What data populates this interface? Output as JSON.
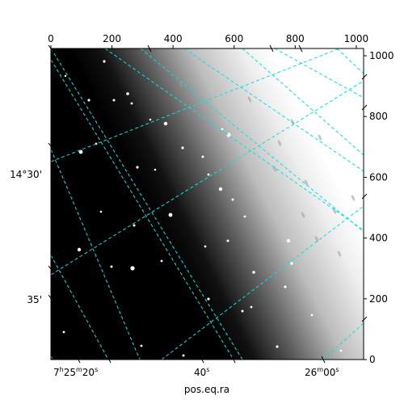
{
  "chart_data": {
    "type": "image",
    "xlabel": "pos.eq.ra",
    "ylabel": "",
    "pixel_axes": {
      "x_ticks": [
        0,
        200,
        400,
        600,
        800,
        1000
      ],
      "y_ticks": [
        0,
        200,
        400,
        600,
        800,
        1000
      ],
      "xlim": [
        0,
        1024
      ],
      "ylim": [
        0,
        1024
      ]
    },
    "world_axes": {
      "ra_ticks": [
        {
          "h": "7",
          "m": "25",
          "s": "20"
        },
        {
          "s": "40"
        },
        {
          "m": "26",
          "s": "00"
        }
      ],
      "dec_ticks": [
        "14°30'",
        "35'"
      ]
    },
    "grid": true,
    "grid_color": "#00e5e5",
    "image_style": {
      "colormap": "gray",
      "dark_color": "#000000",
      "bright_color": "#ffffff"
    }
  }
}
